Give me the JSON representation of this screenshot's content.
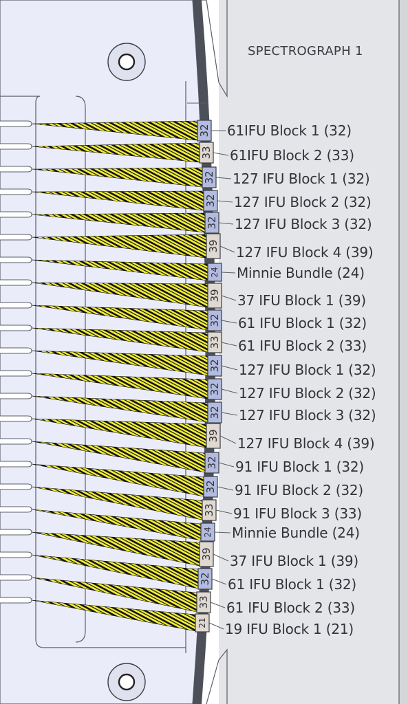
{
  "title": "SPECTROGRAPH 1",
  "colors": {
    "plate": "#eaecfa",
    "panel": "#e3e5e8",
    "outline": "#5a5e66",
    "fiber": "#f2ee3a",
    "block_blue": "#b3bbe0",
    "block_beige": "#e0d9d2",
    "label_text": "#303338"
  },
  "blocks": [
    {
      "count": "32",
      "label": "61IFU  Block 1 (32)"
    },
    {
      "count": "33",
      "label": "61IFU  Block 2 (33)"
    },
    {
      "count": "32",
      "label": "127 IFU  Block 1 (32)"
    },
    {
      "count": "32",
      "label": "127 IFU  Block 2 (32)"
    },
    {
      "count": "32",
      "label": "127 IFU  Block 3 (32)"
    },
    {
      "count": "39",
      "label": "127 IFU  Block 4 (39)"
    },
    {
      "count": "24",
      "label": "Minnie Bundle (24)"
    },
    {
      "count": "39",
      "label": "37 IFU  Block 1 (39)"
    },
    {
      "count": "32",
      "label": "61 IFU  Block 1 (32)"
    },
    {
      "count": "33",
      "label": "61 IFU  Block 2 (33)"
    },
    {
      "count": "32",
      "label": "127 IFU  Block 1 (32)"
    },
    {
      "count": "32",
      "label": "127 IFU  Block 2 (32)"
    },
    {
      "count": "32",
      "label": "127 IFU  Block 3 (32)"
    },
    {
      "count": "39",
      "label": "127 IFU  Block 4 (39)"
    },
    {
      "count": "32",
      "label": "91 IFU  Block 1 (32)"
    },
    {
      "count": "32",
      "label": "91 IFU  Block 2 (32)"
    },
    {
      "count": "33",
      "label": "91 IFU  Block 3 (33)"
    },
    {
      "count": "24",
      "label": "Minnie Bundle (24)"
    },
    {
      "count": "39",
      "label": "37 IFU  Block 1 (39)"
    },
    {
      "count": "32",
      "label": "61 IFU  Block 1 (32)"
    },
    {
      "count": "33",
      "label": "61 IFU  Block 2 (33)"
    },
    {
      "count": "21",
      "label": "19 IFU  Block 1 (21)"
    }
  ]
}
